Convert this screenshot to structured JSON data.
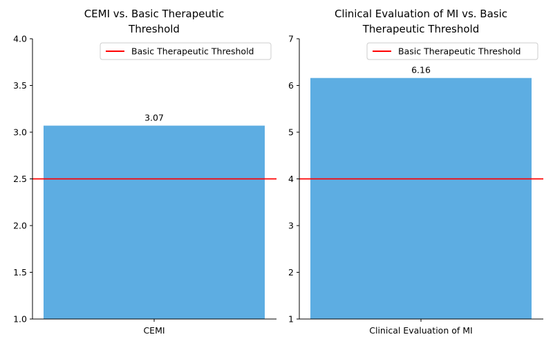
{
  "chart_data": [
    {
      "type": "bar",
      "title_lines": [
        "CEMI vs. Basic Therapeutic",
        "Threshold"
      ],
      "categories": [
        "CEMI"
      ],
      "values": [
        3.07
      ],
      "value_labels": [
        "3.07"
      ],
      "ylim": [
        1.0,
        4.0
      ],
      "yticks": [
        1.0,
        1.5,
        2.0,
        2.5,
        3.0,
        3.5,
        4.0
      ],
      "ytick_labels": [
        "1.0",
        "1.5",
        "2.0",
        "2.5",
        "3.0",
        "3.5",
        "4.0"
      ],
      "threshold": {
        "label": "Basic Therapeutic Threshold",
        "value": 2.5
      },
      "legend_position": "top-right",
      "bar_color": "#5dade2",
      "threshold_color": "#ff0000"
    },
    {
      "type": "bar",
      "title_lines": [
        "Clinical Evaluation of MI vs. Basic",
        "Therapeutic Threshold"
      ],
      "categories": [
        "Clinical Evaluation of MI"
      ],
      "values": [
        6.16
      ],
      "value_labels": [
        "6.16"
      ],
      "ylim": [
        1,
        7
      ],
      "yticks": [
        1,
        2,
        3,
        4,
        5,
        6,
        7
      ],
      "ytick_labels": [
        "1",
        "2",
        "3",
        "4",
        "5",
        "6",
        "7"
      ],
      "threshold": {
        "label": "Basic Therapeutic Threshold",
        "value": 4
      },
      "legend_position": "top-right",
      "bar_color": "#5dade2",
      "threshold_color": "#ff0000"
    }
  ]
}
